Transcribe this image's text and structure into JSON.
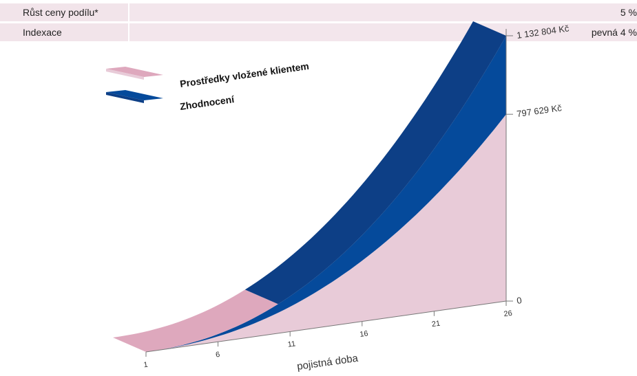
{
  "params": [
    {
      "label": "Růst ceny podílu*",
      "value": "5 %"
    },
    {
      "label": "Indexace",
      "value": "pevná 4 %"
    }
  ],
  "colors": {
    "invested_front": "#e8cbd8",
    "invested_top": "#dea8bd",
    "growth_top": "#0d3f86",
    "growth_front": "#054a9b",
    "axis": "#777777"
  },
  "chart_data": {
    "type": "area",
    "title": "",
    "xlabel": "pojistná doba",
    "x_ticks": [
      "1",
      "6",
      "11",
      "16",
      "21",
      "26"
    ],
    "y_ticks": [
      "0",
      "797 629 Kč",
      "1 132 804 Kč"
    ],
    "x": [
      1,
      26
    ],
    "series": [
      {
        "name": "Prostředky vložené klientem",
        "values": [
          0,
          797629
        ]
      },
      {
        "name": "Zhodnocení",
        "values": [
          0,
          1132804
        ]
      }
    ],
    "ylim": [
      0,
      1132804
    ],
    "legend_position": "top-left"
  }
}
